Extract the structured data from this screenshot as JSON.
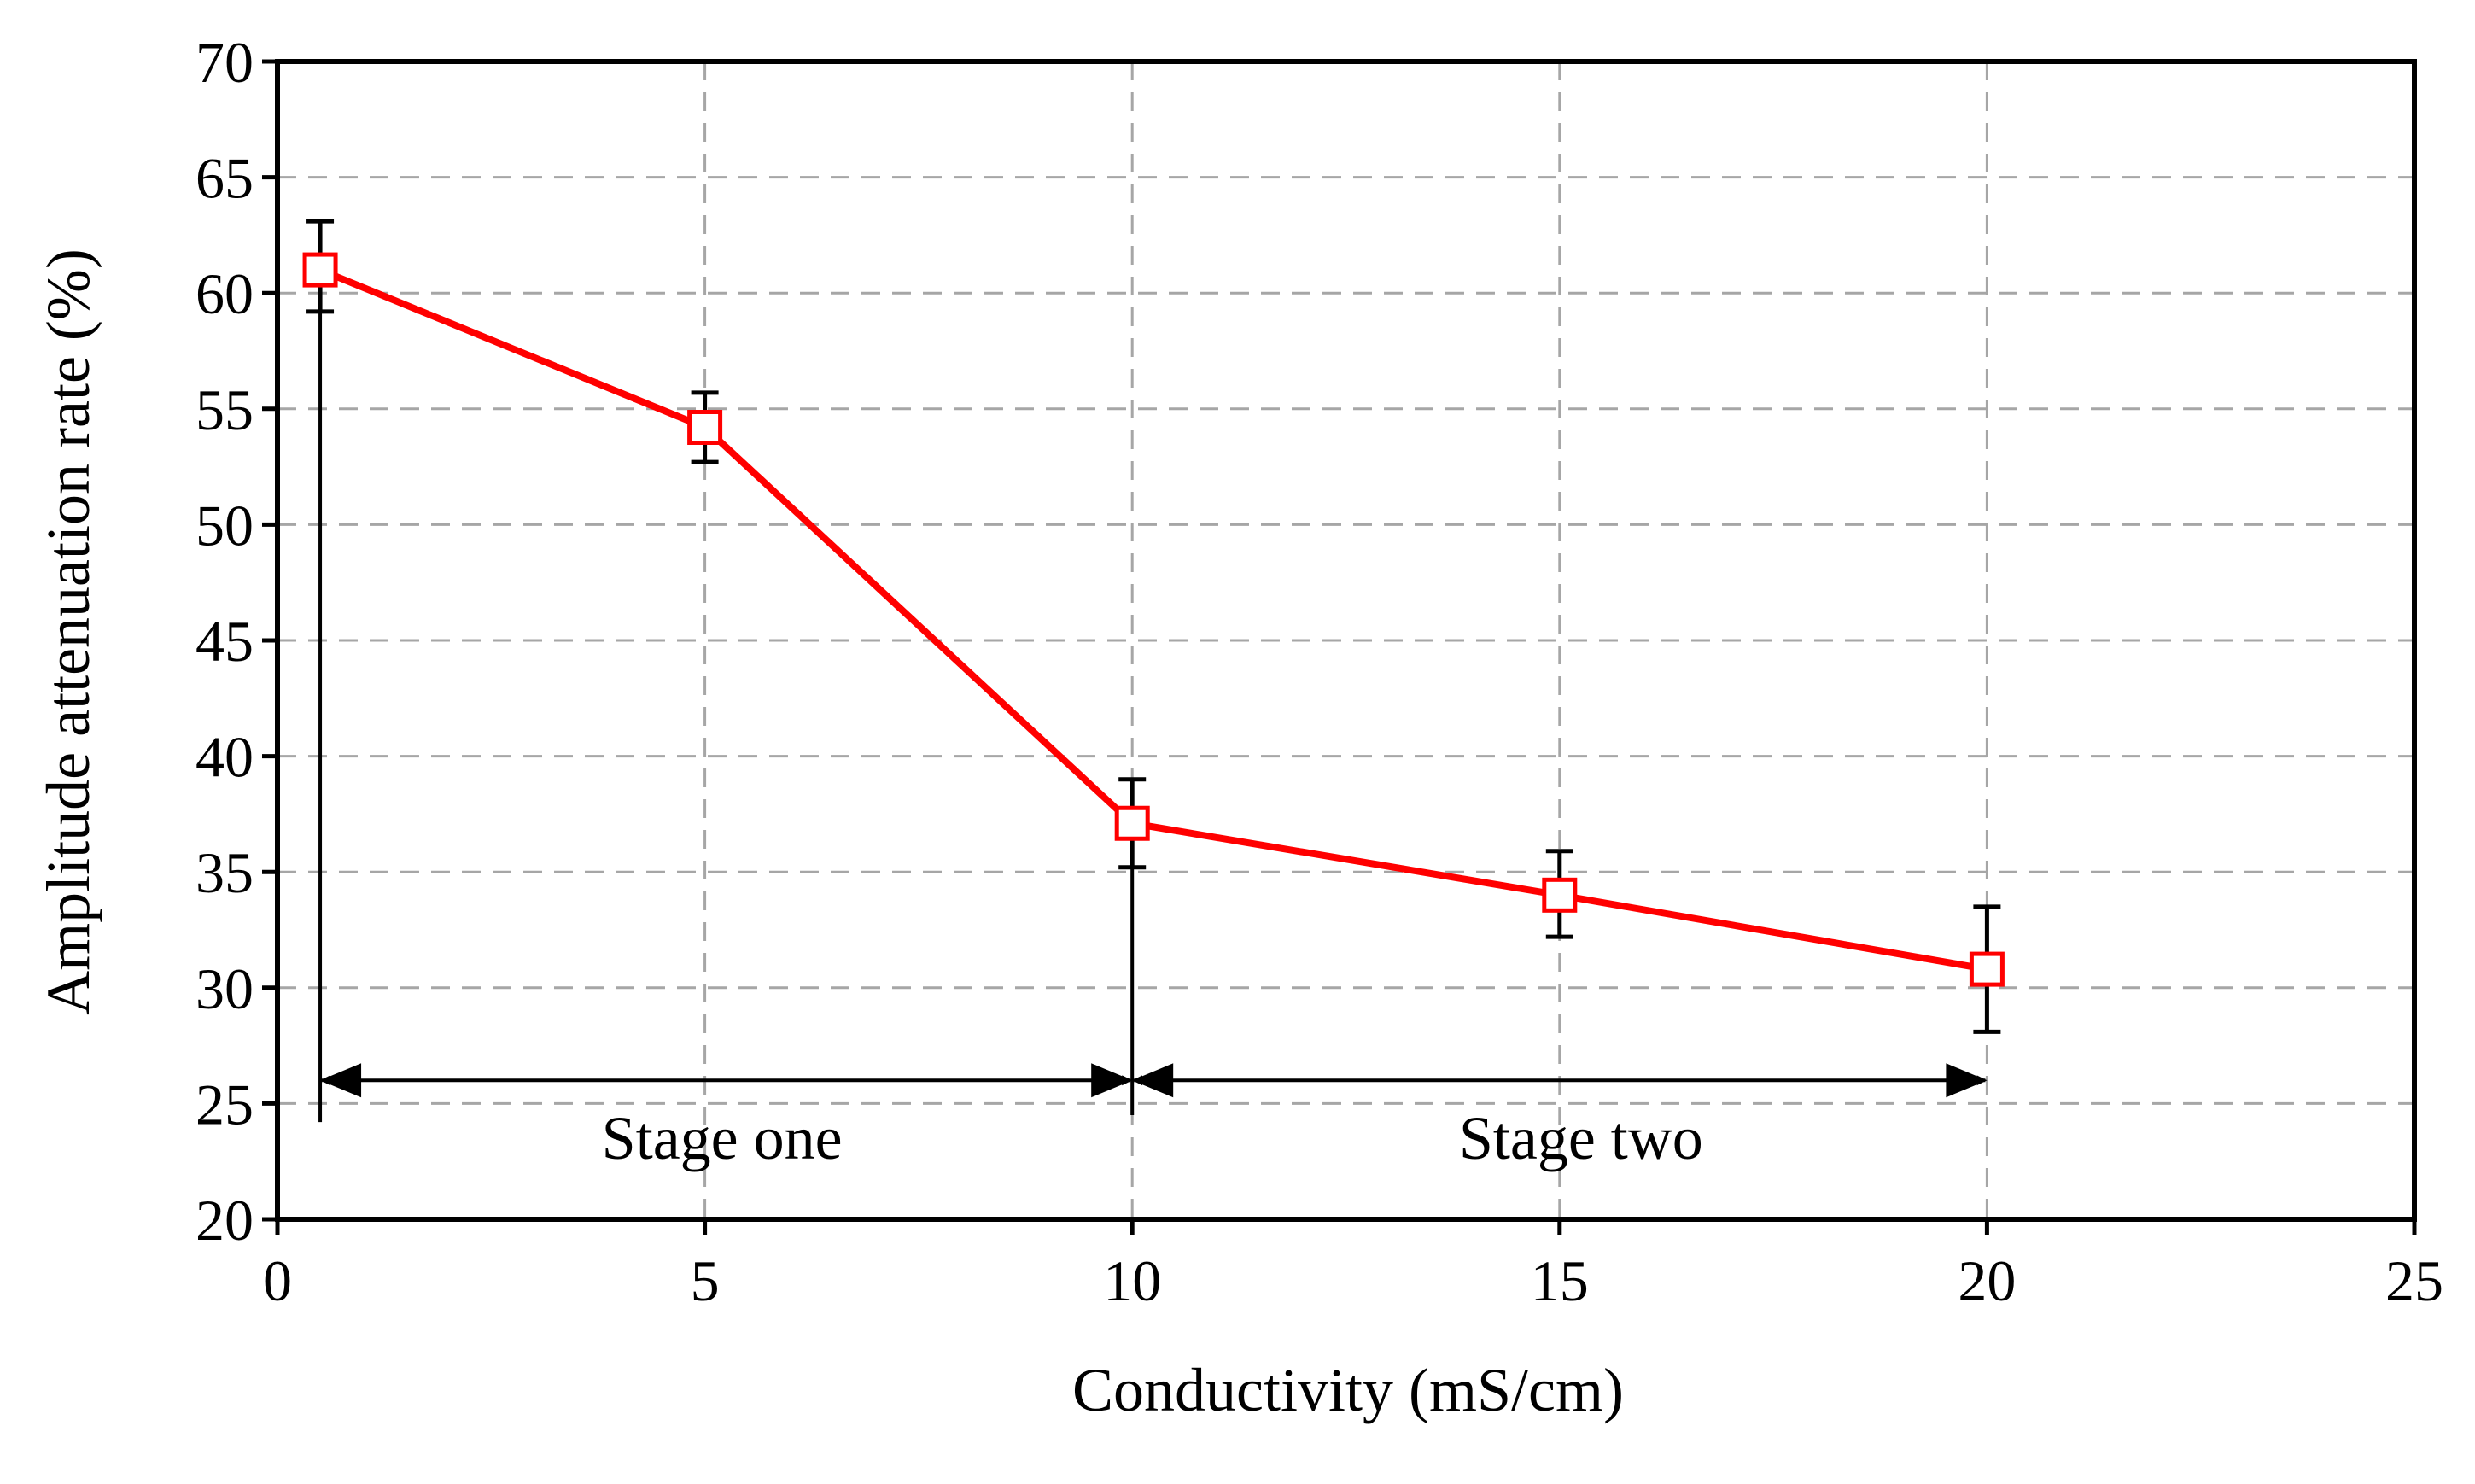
{
  "chart_data": {
    "type": "line",
    "title": "",
    "xlabel": "Conductivity (mS/cm)",
    "ylabel": "Amplitude attenuation rate (%)",
    "xlim": [
      0,
      25
    ],
    "ylim": [
      20,
      70
    ],
    "x_ticks": [
      "0",
      "5",
      "10",
      "15",
      "20",
      "25"
    ],
    "y_ticks": [
      "20",
      "25",
      "30",
      "35",
      "40",
      "45",
      "50",
      "55",
      "60",
      "65",
      "70"
    ],
    "grid": true,
    "legend": "none",
    "colors": {
      "series": "#ff0000",
      "axis": "#000000",
      "grid": "#a6a6a6",
      "error_bar": "#000000"
    },
    "series": [
      {
        "x": [
          0.5,
          5,
          10,
          15,
          20
        ],
        "values": [
          61.0,
          54.2,
          37.1,
          34.0,
          30.8
        ],
        "error_low": [
          59.2,
          52.7,
          35.2,
          32.2,
          28.1
        ],
        "error_high": [
          63.1,
          55.7,
          39.0,
          35.9,
          33.5
        ],
        "marker": "open-square"
      }
    ],
    "annotations": [
      {
        "label": "Stage one",
        "x_start": 0.5,
        "x_end": 10,
        "y": 26,
        "label_x": 5.2,
        "label_y": 23.5,
        "double_arrow": true
      },
      {
        "label": "Stage two",
        "x_start": 10,
        "x_end": 20,
        "y": 26,
        "label_x": 15.25,
        "label_y": 23.5,
        "double_arrow": true
      }
    ],
    "reference_lines": [
      {
        "x": 0.5,
        "y_from": 24.2,
        "y_to": 59.2
      },
      {
        "x": 10,
        "y_from": 24.5,
        "y_to": 35.2
      }
    ]
  }
}
